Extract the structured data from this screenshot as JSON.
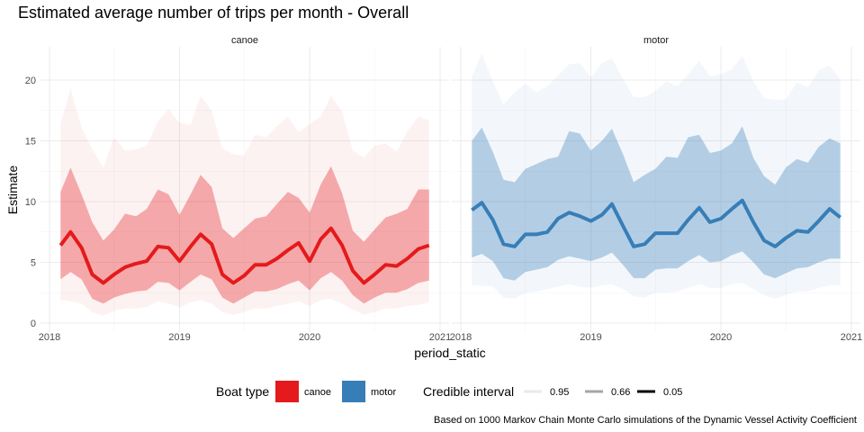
{
  "chart_data": {
    "type": "area",
    "title": "Estimated average number of trips per month - Overall",
    "xlabel": "period_static",
    "ylabel": "Estimate",
    "ylim": [
      0,
      22
    ],
    "y_ticks": [
      "0",
      "5",
      "10",
      "15",
      "20"
    ],
    "x_ticks": [
      "2018",
      "2019",
      "2020",
      "2021"
    ],
    "grid": true,
    "legend_position": "bottom",
    "caption": "Based on 1000 Markov Chain Monte Carlo simulations of the Dynamic Vessel Activity Coefficient",
    "legend": {
      "boat_type_title": "Boat type",
      "credible_interval_title": "Credible interval",
      "boat_types": [
        {
          "label": "canoe",
          "color": "#E41A1C"
        },
        {
          "label": "motor",
          "color": "#377EB8"
        }
      ],
      "intervals": [
        {
          "label": "0.95"
        },
        {
          "label": "0.66"
        },
        {
          "label": "0.05"
        }
      ]
    },
    "x": [
      "2018-02",
      "2018-03",
      "2018-04",
      "2018-05",
      "2018-06",
      "2018-07",
      "2018-08",
      "2018-09",
      "2018-10",
      "2018-11",
      "2018-12",
      "2019-01",
      "2019-02",
      "2019-03",
      "2019-04",
      "2019-05",
      "2019-06",
      "2019-07",
      "2019-08",
      "2019-09",
      "2019-10",
      "2019-11",
      "2019-12",
      "2020-01",
      "2020-02",
      "2020-03",
      "2020-04",
      "2020-05",
      "2020-06",
      "2020-07",
      "2020-08",
      "2020-09",
      "2020-10",
      "2020-11",
      "2020-12"
    ],
    "facets": [
      {
        "name": "canoe",
        "color": "#E41A1C",
        "median": [
          6.4,
          7.5,
          6.2,
          4.0,
          3.3,
          4.0,
          4.6,
          4.9,
          5.1,
          6.3,
          6.2,
          5.1,
          6.3,
          7.3,
          6.5,
          4.0,
          3.3,
          3.9,
          4.8,
          4.8,
          5.3,
          6.0,
          6.6,
          5.1,
          6.9,
          7.8,
          6.4,
          4.3,
          3.3,
          4.0,
          4.8,
          4.7,
          5.3,
          6.1,
          6.4
        ],
        "ci66_low": [
          3.6,
          4.2,
          3.6,
          2.0,
          1.6,
          2.1,
          2.4,
          2.6,
          2.7,
          3.4,
          3.3,
          2.7,
          3.4,
          4.0,
          3.6,
          2.1,
          1.6,
          2.1,
          2.6,
          2.6,
          2.8,
          3.2,
          3.5,
          2.7,
          3.7,
          4.2,
          3.5,
          2.3,
          1.6,
          2.1,
          2.5,
          2.5,
          2.8,
          3.3,
          3.5
        ],
        "ci66_high": [
          10.8,
          12.8,
          10.6,
          8.3,
          6.8,
          7.7,
          9.0,
          8.8,
          9.4,
          11.0,
          10.6,
          8.9,
          10.6,
          12.2,
          11.2,
          7.8,
          7.0,
          7.8,
          8.6,
          8.8,
          9.8,
          10.8,
          10.3,
          9.1,
          11.4,
          12.9,
          10.7,
          7.6,
          6.7,
          7.7,
          8.7,
          9.0,
          9.4,
          11.0,
          11.0
        ],
        "ci95_low": [
          1.9,
          1.8,
          1.6,
          0.9,
          0.6,
          1.0,
          1.2,
          1.2,
          1.3,
          1.8,
          1.6,
          1.3,
          1.7,
          1.9,
          1.6,
          0.9,
          0.7,
          0.9,
          1.2,
          1.2,
          1.4,
          1.6,
          1.8,
          1.4,
          1.9,
          2.0,
          1.6,
          1.1,
          0.7,
          0.9,
          1.2,
          1.2,
          1.4,
          1.5,
          1.7
        ],
        "ci95_high": [
          16.4,
          19.3,
          16.1,
          14.3,
          12.8,
          15.3,
          14.2,
          14.3,
          14.6,
          16.6,
          17.6,
          16.5,
          16.3,
          18.7,
          17.5,
          14.4,
          13.9,
          13.8,
          15.5,
          15.3,
          16.2,
          17.0,
          15.7,
          16.4,
          17.0,
          18.7,
          17.4,
          14.2,
          13.6,
          14.6,
          14.8,
          14.1,
          15.8,
          17.0,
          16.7
        ]
      },
      {
        "name": "motor",
        "color": "#377EB8",
        "median": [
          9.3,
          9.9,
          8.5,
          6.5,
          6.3,
          7.3,
          7.3,
          7.5,
          8.6,
          9.1,
          8.8,
          8.4,
          8.9,
          9.8,
          8.0,
          6.3,
          6.5,
          7.4,
          7.4,
          7.4,
          8.5,
          9.5,
          8.3,
          8.6,
          9.4,
          10.1,
          8.3,
          6.8,
          6.3,
          7.0,
          7.6,
          7.5,
          8.4,
          9.4,
          8.7
        ],
        "ci66_low": [
          5.4,
          5.7,
          5.1,
          3.7,
          3.5,
          4.2,
          4.4,
          4.6,
          5.2,
          5.5,
          5.3,
          5.1,
          5.4,
          5.8,
          4.8,
          3.7,
          3.7,
          4.4,
          4.5,
          4.5,
          5.1,
          5.6,
          5.0,
          5.1,
          5.6,
          5.9,
          5.0,
          4.0,
          3.7,
          4.1,
          4.5,
          4.6,
          5.0,
          5.3,
          5.3
        ],
        "ci66_high": [
          15.0,
          16.1,
          14.1,
          11.8,
          11.6,
          12.7,
          13.1,
          13.5,
          13.7,
          15.8,
          15.6,
          14.2,
          15.0,
          16.0,
          13.9,
          11.6,
          12.2,
          12.7,
          13.7,
          13.6,
          15.3,
          15.5,
          14.0,
          14.2,
          14.8,
          16.2,
          13.6,
          12.1,
          11.4,
          12.8,
          13.5,
          13.2,
          14.5,
          15.2,
          14.8
        ],
        "ci95_low": [
          3.1,
          3.1,
          3.0,
          2.1,
          2.0,
          2.5,
          2.6,
          2.8,
          3.0,
          3.2,
          3.0,
          2.9,
          3.1,
          3.2,
          2.8,
          2.2,
          2.1,
          2.5,
          2.5,
          2.6,
          2.9,
          3.2,
          2.9,
          2.9,
          3.2,
          3.3,
          2.8,
          2.3,
          2.0,
          2.3,
          2.6,
          2.6,
          2.9,
          3.1,
          3.1
        ],
        "ci95_high": [
          20.3,
          22.2,
          19.9,
          18.0,
          19.0,
          19.7,
          19.0,
          19.5,
          20.4,
          21.3,
          21.4,
          20.2,
          21.4,
          21.8,
          20.1,
          18.6,
          18.6,
          19.1,
          19.9,
          19.5,
          20.5,
          21.6,
          20.3,
          20.5,
          20.9,
          22.0,
          19.9,
          18.5,
          18.4,
          18.4,
          19.8,
          19.4,
          20.8,
          21.2,
          20.0
        ]
      }
    ]
  }
}
